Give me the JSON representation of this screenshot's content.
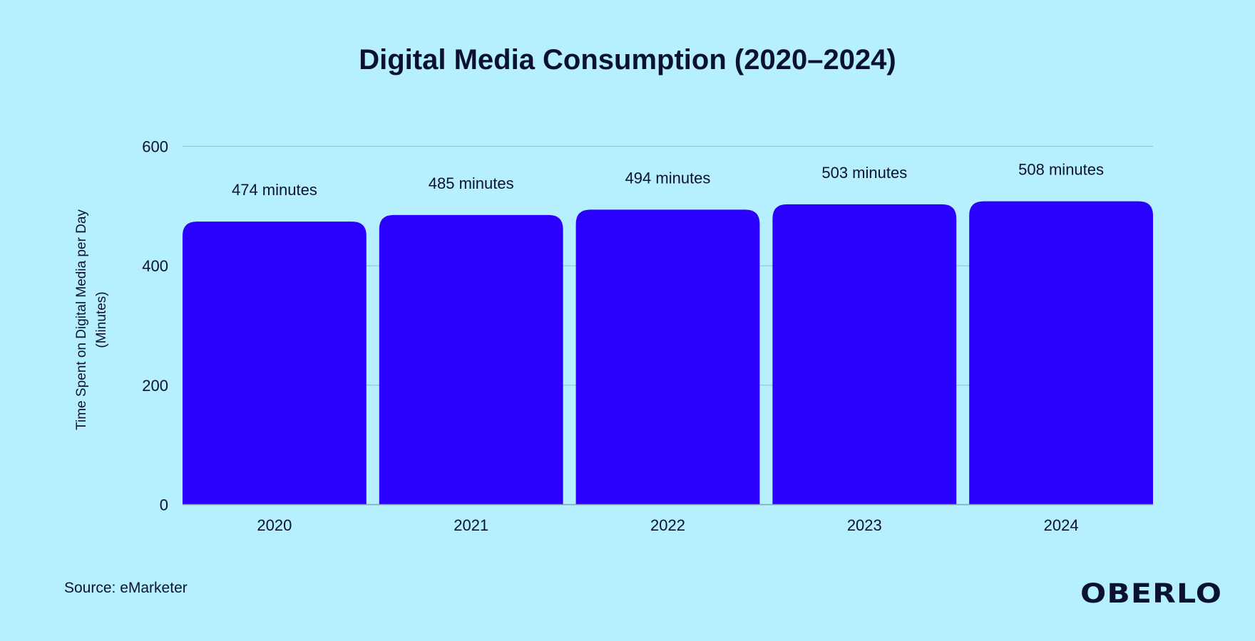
{
  "colors": {
    "background": "#b6f0ff",
    "bar": "#2a00ff",
    "text": "#0b1130",
    "grid": "#8fc6d6"
  },
  "chart_data": {
    "type": "bar",
    "title": "Digital Media Consumption (2020–2024)",
    "categories": [
      "2020",
      "2021",
      "2022",
      "2023",
      "2024"
    ],
    "values": [
      474,
      485,
      494,
      503,
      508
    ],
    "data_labels": [
      "474 minutes",
      "485 minutes",
      "494 minutes",
      "503 minutes",
      "508 minutes"
    ],
    "xlabel": "",
    "ylabel": [
      "Time Spent on Digital Media per Day",
      "(Minutes)"
    ],
    "ylim": [
      0,
      600
    ],
    "yticks": [
      "0",
      "200",
      "400",
      "600"
    ],
    "grid": true
  },
  "footer": {
    "source": "Source: eMarketer",
    "logo": "OBERLO"
  }
}
